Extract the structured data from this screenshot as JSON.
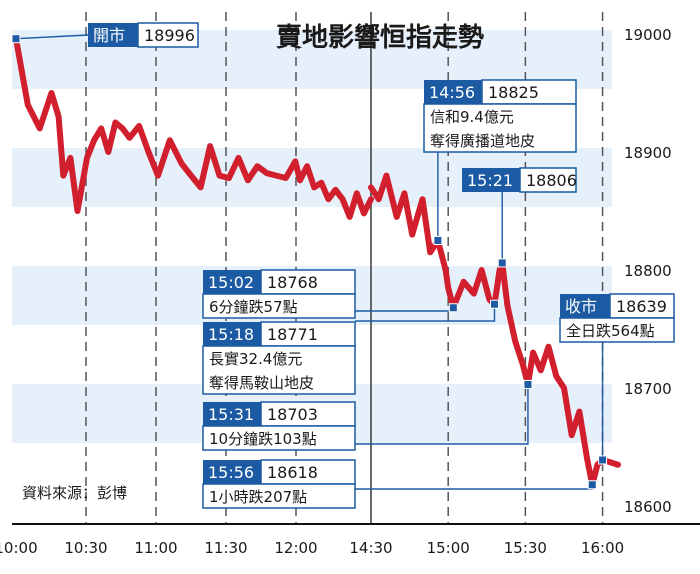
{
  "chart_data": {
    "type": "line",
    "title": "賣地影響恒指走勢",
    "source_note": "資料來源：彭博",
    "x_ticks": [
      "10:00",
      "10:30",
      "11:00",
      "11:30",
      "12:00",
      "14:30",
      "15:00",
      "15:30",
      "16:00"
    ],
    "y_ticks": [
      19000,
      18900,
      18800,
      18700,
      18600
    ],
    "ylim": [
      18580,
      19020
    ],
    "grid": true,
    "colors": {
      "line": "#d11f2e",
      "band": "#e6f0fa",
      "box_dark": "#1c5aa3",
      "leader": "#1c5aa3"
    },
    "series": [
      {
        "segments": [
          {
            "x": [
              "10:00",
              "10:05",
              "10:10",
              "10:15",
              "10:18",
              "10:20",
              "10:23",
              "10:26",
              "10:30",
              "10:33",
              "10:36",
              "10:39",
              "10:42",
              "10:45",
              "10:48",
              "10:52",
              "10:56",
              "11:00",
              "11:05",
              "11:10",
              "11:14",
              "11:18",
              "11:22",
              "11:26",
              "11:30",
              "11:34",
              "11:38",
              "11:42",
              "11:46",
              "11:50",
              "11:54",
              "11:58",
              "12:00",
              "12:03",
              "12:06",
              "12:09",
              "12:12",
              "12:15",
              "12:18",
              "12:21",
              "12:24",
              "12:27",
              "12:30"
            ],
            "values": [
              18996,
              18940,
              18920,
              18950,
              18930,
              18880,
              18895,
              18850,
              18895,
              18910,
              18920,
              18900,
              18925,
              18920,
              18912,
              18922,
              18900,
              18880,
              18910,
              18890,
              18880,
              18870,
              18905,
              18880,
              18878,
              18895,
              18876,
              18888,
              18882,
              18880,
              18878,
              18892,
              18876,
              18888,
              18870,
              18874,
              18860,
              18868,
              18860,
              18845,
              18865,
              18848,
              18860
            ]
          },
          {
            "x": [
              "14:30",
              "14:33",
              "14:36",
              "14:40",
              "14:43",
              "14:46",
              "14:50",
              "14:53",
              "14:56",
              "14:59",
              "15:00",
              "15:02",
              "15:06",
              "15:10",
              "15:13",
              "15:16",
              "15:18",
              "15:20",
              "15:21",
              "15:23",
              "15:26",
              "15:29",
              "15:31",
              "15:33",
              "15:36",
              "15:39",
              "15:42",
              "15:45",
              "15:48",
              "15:51",
              "15:54",
              "15:56",
              "15:58",
              "16:00",
              "16:03",
              "16:06"
            ],
            "values": [
              18870,
              18860,
              18880,
              18845,
              18865,
              18830,
              18860,
              18815,
              18825,
              18800,
              18785,
              18768,
              18790,
              18780,
              18800,
              18775,
              18771,
              18800,
              18806,
              18770,
              18740,
              18720,
              18703,
              18730,
              18715,
              18735,
              18710,
              18700,
              18660,
              18680,
              18640,
              18618,
              18635,
              18639,
              18637,
              18635
            ]
          }
        ]
      }
    ],
    "annotations": [
      {
        "time": "開市",
        "value": "18996",
        "text": "",
        "x": "10:00",
        "y": 18996
      },
      {
        "time": "14:56",
        "value": "18825",
        "text": "信和9.4億元奪得廣播道地皮",
        "x": "14:56",
        "y": 18825
      },
      {
        "time": "15:21",
        "value": "18806",
        "text": "",
        "x": "15:21",
        "y": 18806
      },
      {
        "time": "15:02",
        "value": "18768",
        "text": "6分鐘跌57點",
        "x": "15:02",
        "y": 18768
      },
      {
        "time": "15:18",
        "value": "18771",
        "text": "長實32.4億元奪得馬鞍山地皮",
        "x": "15:18",
        "y": 18771
      },
      {
        "time": "15:31",
        "value": "18703",
        "text": "10分鐘跌103點",
        "x": "15:31",
        "y": 18703
      },
      {
        "time": "15:56",
        "value": "18618",
        "text": "1小時跌207點",
        "x": "15:56",
        "y": 18618
      },
      {
        "time": "收市",
        "value": "18639",
        "text": "全日跌564點",
        "x": "16:00",
        "y": 18639
      }
    ]
  }
}
